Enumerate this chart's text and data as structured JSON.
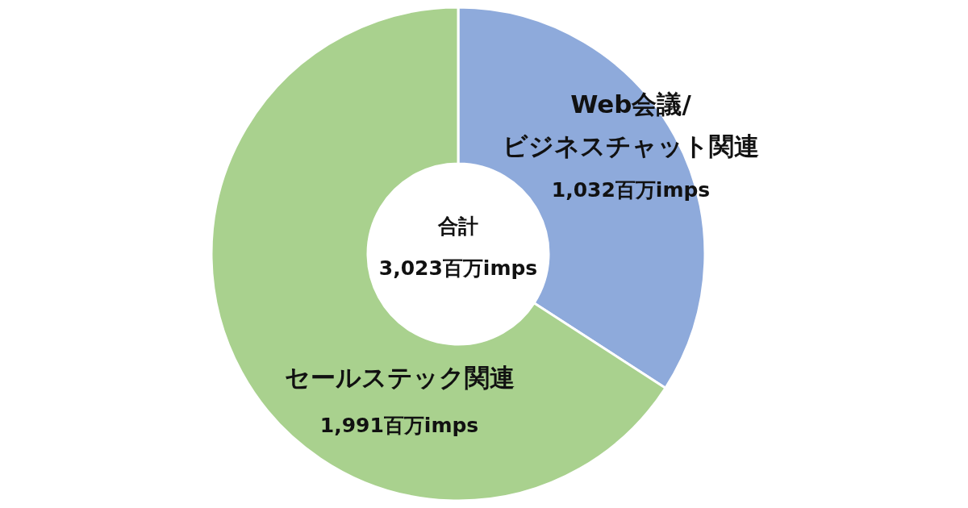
{
  "chart_data": {
    "type": "donut",
    "categories": [
      "Web会議/\nビジネスチャット関連",
      "セールステック関連"
    ],
    "values": [
      1032,
      1991
    ],
    "colors": [
      "#8eaadb",
      "#a9d18e"
    ],
    "value_labels": [
      "1,032百万imps",
      "1,991百万imps"
    ],
    "annotations": [
      "合計",
      "3,023百万imps"
    ]
  }
}
